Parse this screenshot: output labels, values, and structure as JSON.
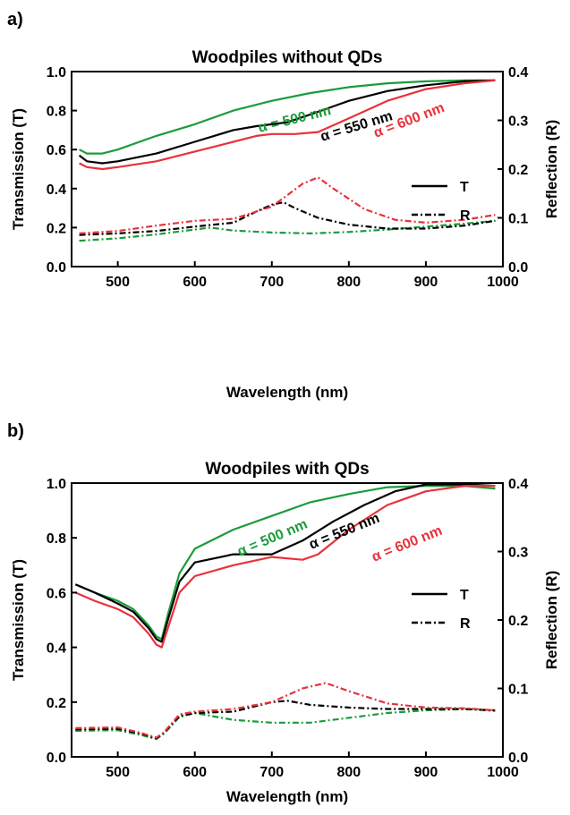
{
  "chart_data": [
    {
      "panel_label": "a)",
      "type": "line",
      "title": "Woodpiles without QDs",
      "xlabel": "Wavelength (nm)",
      "ylabel_left": "Transmission (T)",
      "ylabel_right": "Reflection (R)",
      "xlim": [
        440,
        1000
      ],
      "ylim_left": [
        0.0,
        1.0
      ],
      "ylim_right": [
        0.0,
        0.4
      ],
      "xticks": [
        "500",
        "600",
        "700",
        "800",
        "900",
        "1000"
      ],
      "yticks_left": [
        "0.0",
        "0.2",
        "0.4",
        "0.6",
        "0.8",
        "1.0"
      ],
      "yticks_right": [
        "0.0",
        "0.1",
        "0.2",
        "0.3",
        "0.4"
      ],
      "legend": {
        "position": "right-middle",
        "entries": [
          {
            "label": "T",
            "style": "solid"
          },
          {
            "label": "R",
            "style": "dash-dot"
          }
        ]
      },
      "annotations": [
        {
          "text": "α = 500 nm",
          "color": "#1a9c3a"
        },
        {
          "text": "α = 550 nm",
          "color": "#000000"
        },
        {
          "text": "α = 600 nm",
          "color": "#e8323a"
        }
      ],
      "series": [
        {
          "name": "α = 500 nm",
          "kind": "T",
          "axis": "left",
          "color": "#1a9c3a",
          "x": [
            450,
            460,
            480,
            500,
            550,
            600,
            650,
            700,
            750,
            800,
            850,
            900,
            950,
            990
          ],
          "y": [
            0.6,
            0.58,
            0.58,
            0.6,
            0.67,
            0.73,
            0.8,
            0.85,
            0.89,
            0.92,
            0.94,
            0.95,
            0.955,
            0.955
          ]
        },
        {
          "name": "α = 550 nm",
          "kind": "T",
          "axis": "left",
          "color": "#000000",
          "x": [
            450,
            460,
            480,
            500,
            550,
            600,
            650,
            680,
            700,
            720,
            750,
            800,
            850,
            900,
            950,
            990
          ],
          "y": [
            0.57,
            0.54,
            0.53,
            0.54,
            0.58,
            0.64,
            0.7,
            0.72,
            0.73,
            0.74,
            0.78,
            0.85,
            0.9,
            0.93,
            0.95,
            0.955
          ]
        },
        {
          "name": "α = 600 nm",
          "kind": "T",
          "axis": "left",
          "color": "#e8323a",
          "x": [
            450,
            460,
            480,
            500,
            550,
            600,
            650,
            680,
            700,
            730,
            760,
            800,
            850,
            900,
            950,
            990
          ],
          "y": [
            0.53,
            0.51,
            0.5,
            0.51,
            0.54,
            0.59,
            0.64,
            0.67,
            0.68,
            0.68,
            0.69,
            0.76,
            0.85,
            0.91,
            0.94,
            0.955
          ]
        },
        {
          "name": "α = 500 nm",
          "kind": "R",
          "axis": "right",
          "color": "#1a9c3a",
          "x": [
            450,
            500,
            550,
            600,
            620,
            650,
            700,
            750,
            800,
            850,
            900,
            950,
            990
          ],
          "y": [
            0.053,
            0.058,
            0.066,
            0.076,
            0.08,
            0.074,
            0.07,
            0.068,
            0.071,
            0.076,
            0.082,
            0.088,
            0.094
          ]
        },
        {
          "name": "α = 550 nm",
          "kind": "R",
          "axis": "right",
          "color": "#000000",
          "x": [
            450,
            500,
            550,
            600,
            650,
            680,
            700,
            715,
            730,
            760,
            800,
            850,
            900,
            950,
            990
          ],
          "y": [
            0.065,
            0.068,
            0.073,
            0.082,
            0.09,
            0.113,
            0.127,
            0.132,
            0.12,
            0.1,
            0.086,
            0.078,
            0.078,
            0.084,
            0.094
          ]
        },
        {
          "name": "α = 600 nm",
          "kind": "R",
          "axis": "right",
          "color": "#e8323a",
          "x": [
            450,
            500,
            550,
            600,
            650,
            700,
            740,
            760,
            780,
            820,
            860,
            900,
            950,
            990
          ],
          "y": [
            0.068,
            0.073,
            0.084,
            0.094,
            0.098,
            0.123,
            0.17,
            0.183,
            0.16,
            0.118,
            0.096,
            0.09,
            0.096,
            0.106
          ]
        }
      ]
    },
    {
      "panel_label": "b)",
      "type": "line",
      "title": "Woodpiles with QDs",
      "xlabel": "Wavelength (nm)",
      "ylabel_left": "Transmission (T)",
      "ylabel_right": "Reflection (R)",
      "xlim": [
        440,
        1000
      ],
      "ylim_left": [
        0.0,
        1.0
      ],
      "ylim_right": [
        0.0,
        0.4
      ],
      "xticks": [
        "500",
        "600",
        "700",
        "800",
        "900",
        "1000"
      ],
      "yticks_left": [
        "0.0",
        "0.2",
        "0.4",
        "0.6",
        "0.8",
        "1.0"
      ],
      "yticks_right": [
        "0.0",
        "0.1",
        "0.2",
        "0.3",
        "0.4"
      ],
      "legend": {
        "position": "right-middle",
        "entries": [
          {
            "label": "T",
            "style": "solid"
          },
          {
            "label": "R",
            "style": "dash-dot"
          }
        ]
      },
      "annotations": [
        {
          "text": "α = 500 nm",
          "color": "#1a9c3a"
        },
        {
          "text": "α = 550 nm",
          "color": "#000000"
        },
        {
          "text": "α = 600 nm",
          "color": "#e8323a"
        }
      ],
      "series": [
        {
          "name": "α = 500 nm",
          "kind": "T",
          "axis": "left",
          "color": "#1a9c3a",
          "x": [
            445,
            470,
            500,
            520,
            540,
            550,
            557,
            565,
            580,
            600,
            650,
            700,
            750,
            800,
            850,
            900,
            950,
            990
          ],
          "y": [
            0.63,
            0.6,
            0.57,
            0.54,
            0.48,
            0.44,
            0.43,
            0.52,
            0.67,
            0.76,
            0.83,
            0.88,
            0.93,
            0.96,
            0.985,
            0.99,
            0.99,
            0.98
          ]
        },
        {
          "name": "α = 550 nm",
          "kind": "T",
          "axis": "left",
          "color": "#000000",
          "x": [
            445,
            470,
            500,
            520,
            540,
            550,
            557,
            565,
            580,
            600,
            650,
            700,
            740,
            780,
            820,
            860,
            900,
            950,
            990
          ],
          "y": [
            0.63,
            0.6,
            0.56,
            0.53,
            0.47,
            0.43,
            0.42,
            0.5,
            0.64,
            0.71,
            0.74,
            0.74,
            0.79,
            0.86,
            0.92,
            0.97,
            0.995,
            0.995,
            0.99
          ]
        },
        {
          "name": "α = 600 nm",
          "kind": "T",
          "axis": "left",
          "color": "#e8323a",
          "x": [
            445,
            470,
            500,
            520,
            540,
            550,
            557,
            565,
            580,
            600,
            650,
            700,
            740,
            760,
            800,
            850,
            900,
            950,
            990
          ],
          "y": [
            0.6,
            0.57,
            0.54,
            0.51,
            0.45,
            0.41,
            0.4,
            0.47,
            0.6,
            0.66,
            0.7,
            0.73,
            0.72,
            0.74,
            0.83,
            0.92,
            0.97,
            0.99,
            0.99
          ]
        },
        {
          "name": "α = 500 nm",
          "kind": "R",
          "axis": "right",
          "color": "#1a9c3a",
          "x": [
            445,
            500,
            530,
            550,
            560,
            580,
            600,
            650,
            700,
            750,
            800,
            850,
            900,
            950,
            990
          ],
          "y": [
            0.038,
            0.039,
            0.032,
            0.026,
            0.034,
            0.058,
            0.064,
            0.054,
            0.05,
            0.05,
            0.057,
            0.064,
            0.068,
            0.07,
            0.067
          ]
        },
        {
          "name": "α = 550 nm",
          "kind": "R",
          "axis": "right",
          "color": "#000000",
          "x": [
            445,
            500,
            530,
            550,
            560,
            580,
            600,
            650,
            700,
            720,
            750,
            800,
            850,
            900,
            950,
            990
          ],
          "y": [
            0.04,
            0.041,
            0.034,
            0.027,
            0.035,
            0.06,
            0.064,
            0.066,
            0.08,
            0.082,
            0.076,
            0.072,
            0.07,
            0.07,
            0.07,
            0.068
          ]
        },
        {
          "name": "α = 600 nm",
          "kind": "R",
          "axis": "right",
          "color": "#e8323a",
          "x": [
            445,
            500,
            530,
            550,
            560,
            580,
            600,
            650,
            700,
            740,
            770,
            800,
            850,
            900,
            950,
            990
          ],
          "y": [
            0.042,
            0.043,
            0.035,
            0.028,
            0.036,
            0.062,
            0.066,
            0.07,
            0.08,
            0.1,
            0.108,
            0.096,
            0.078,
            0.072,
            0.071,
            0.068
          ]
        }
      ]
    }
  ]
}
